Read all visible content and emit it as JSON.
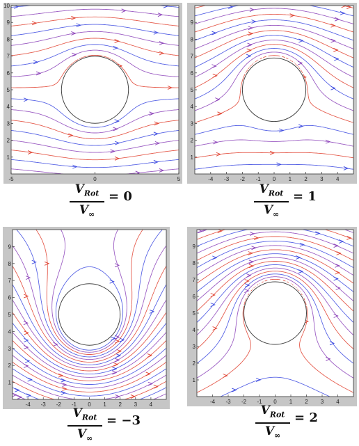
{
  "panels": [
    {
      "id": "top-left",
      "rotation": 0,
      "caption": {
        "v": "V",
        "sub": "Rot",
        "inf": "∞",
        "value": "0"
      },
      "x_ticks": [
        "-5",
        "0",
        "5"
      ],
      "y_ticks": [
        "1",
        "2",
        "3",
        "4",
        "5",
        "6",
        "7",
        "8",
        "9",
        "10"
      ],
      "xlim": [
        -5,
        5
      ],
      "ylim": [
        0,
        10
      ]
    },
    {
      "id": "top-right",
      "rotation": 1,
      "caption": {
        "v": "V",
        "sub": "Rot",
        "inf": "∞",
        "value": "1"
      },
      "x_ticks": [
        "-4",
        "-3",
        "-2",
        "-1",
        "0",
        "1",
        "2",
        "3",
        "4"
      ],
      "y_ticks": [
        "1",
        "2",
        "3",
        "4",
        "5",
        "6",
        "7",
        "8",
        "9"
      ],
      "xlim": [
        -5,
        5
      ],
      "ylim": [
        0,
        10
      ]
    },
    {
      "id": "bottom-left",
      "rotation": -3,
      "caption": {
        "v": "V",
        "sub": "Rot",
        "inf": "∞",
        "value": "−3"
      },
      "x_ticks": [
        "-4",
        "-3",
        "-2",
        "-1",
        "0",
        "1",
        "2",
        "3",
        "4"
      ],
      "y_ticks": [
        "1",
        "2",
        "3",
        "4",
        "5",
        "6",
        "7",
        "8",
        "9"
      ],
      "xlim": [
        -5,
        5
      ],
      "ylim": [
        0,
        10
      ]
    },
    {
      "id": "bottom-right",
      "rotation": 2,
      "caption": {
        "v": "V",
        "sub": "Rot",
        "inf": "∞",
        "value": "2"
      },
      "x_ticks": [
        "-4",
        "-3",
        "-2",
        "-1",
        "0",
        "1",
        "2",
        "3",
        "4"
      ],
      "y_ticks": [
        "1",
        "2",
        "3",
        "4",
        "5",
        "6",
        "7",
        "8",
        "9"
      ],
      "xlim": [
        -5,
        5
      ],
      "ylim": [
        0,
        10
      ]
    }
  ],
  "colors": {
    "stream_blue": "#3a48e0",
    "stream_red": "#e0402e",
    "stream_purple": "#8a3fb8",
    "frame": "#c6c6c6"
  }
}
